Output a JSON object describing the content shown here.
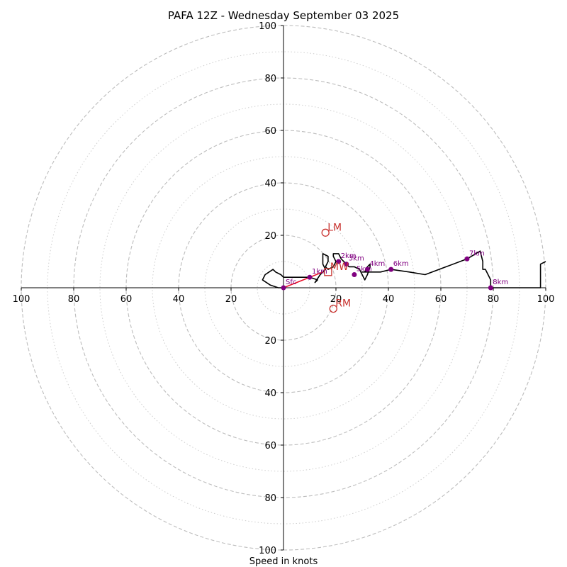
{
  "chart_data": {
    "type": "hodograph",
    "title": "PAFA 12Z - Wednesday September 03 2025",
    "xlabel": "Speed in knots",
    "range": [
      -100,
      100
    ],
    "rings_major": [
      20,
      40,
      60,
      80,
      100
    ],
    "rings_minor": [
      10,
      30,
      50,
      70,
      90
    ],
    "tick_labels": [
      "100",
      "80",
      "60",
      "40",
      "20",
      "20",
      "40",
      "60",
      "80",
      "100"
    ],
    "tick_values": [
      -100,
      -80,
      -60,
      -40,
      -20,
      20,
      40,
      60,
      80,
      100
    ],
    "grid": true,
    "colors": {
      "trace": "#000000",
      "surface_segment": "#e8102a",
      "height_marker": "#800080",
      "motion_marker": "#c8332f",
      "ring": "#bdbdbd"
    },
    "hodograph_uv": [
      [
        0,
        0
      ],
      [
        -2,
        0
      ],
      [
        -5,
        1
      ],
      [
        -8,
        3
      ],
      [
        -7,
        5
      ],
      [
        -4,
        7
      ],
      [
        -3,
        6
      ],
      [
        -1,
        5
      ],
      [
        0,
        4
      ],
      [
        2,
        4
      ],
      [
        5,
        4
      ],
      [
        10,
        4
      ],
      [
        13,
        3
      ],
      [
        12,
        2
      ],
      [
        14,
        5
      ],
      [
        15,
        6
      ],
      [
        16,
        7
      ],
      [
        15,
        9
      ],
      [
        15,
        13
      ],
      [
        17,
        12
      ],
      [
        17,
        10
      ],
      [
        16,
        8
      ],
      [
        17,
        7
      ],
      [
        19,
        8
      ],
      [
        20,
        10
      ],
      [
        19,
        12
      ],
      [
        19,
        13
      ],
      [
        21,
        13
      ],
      [
        22,
        11
      ],
      [
        24,
        9
      ],
      [
        25,
        8
      ],
      [
        27,
        8
      ],
      [
        29,
        7
      ],
      [
        30,
        5
      ],
      [
        31,
        3
      ],
      [
        32,
        5
      ],
      [
        33,
        8
      ],
      [
        33,
        9
      ],
      [
        32,
        8
      ],
      [
        31,
        6
      ],
      [
        30,
        6
      ],
      [
        33,
        6
      ],
      [
        37,
        6
      ],
      [
        41,
        7
      ],
      [
        48,
        6
      ],
      [
        54,
        5
      ],
      [
        62,
        8
      ],
      [
        70,
        11
      ],
      [
        75,
        14
      ],
      [
        76,
        10
      ],
      [
        76,
        7
      ],
      [
        77,
        7
      ],
      [
        79,
        3
      ],
      [
        79,
        0
      ],
      [
        90,
        0
      ],
      [
        98,
        0
      ],
      [
        98,
        9
      ],
      [
        100,
        10
      ]
    ],
    "surface_segment_uv": [
      [
        0,
        0
      ],
      [
        10,
        4
      ],
      [
        15,
        6
      ]
    ],
    "height_markers": [
      {
        "label": "Sfc",
        "u": 0,
        "v": 0
      },
      {
        "label": "1km",
        "u": 10,
        "v": 4
      },
      {
        "label": "2km",
        "u": 21,
        "v": 10
      },
      {
        "label": "3km",
        "u": 24,
        "v": 9
      },
      {
        "label": "4km",
        "u": 32,
        "v": 7
      },
      {
        "label": "5km",
        "u": 27,
        "v": 5
      },
      {
        "label": "6km",
        "u": 41,
        "v": 7
      },
      {
        "label": "7km",
        "u": 70,
        "v": 11
      },
      {
        "label": "8km",
        "u": 79,
        "v": 0
      }
    ],
    "storm_motions": [
      {
        "label": "LM",
        "u": 16,
        "v": 21,
        "marker": "circle"
      },
      {
        "label": "MW",
        "u": 17,
        "v": 6,
        "marker": "square"
      },
      {
        "label": "RM",
        "u": 19,
        "v": -8,
        "marker": "circle"
      }
    ]
  }
}
